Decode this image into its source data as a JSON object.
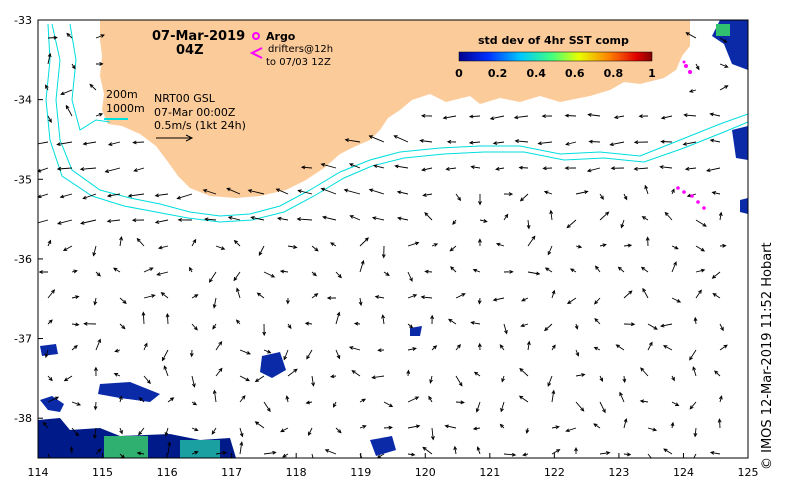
{
  "map": {
    "date": "07-Mar-2019",
    "hour": "04Z",
    "colorbar_title": "std dev of 4hr SST comp",
    "colorbar_ticks": [
      "0",
      "0.2",
      "0.4",
      "0.6",
      "0.8",
      "1"
    ],
    "legend": {
      "argo_label": "Argo",
      "drifters_line1": "drifters@12h",
      "drifters_line2": "to 07/03 12Z",
      "contour_200": "200m",
      "contour_1000": "1000m",
      "product": "NRT00 GSL",
      "product_time": "07-Mar 00:00Z",
      "vector_scale": "0.5m/s (1kt 24h)"
    },
    "lon_ticks": [
      "114",
      "115",
      "116",
      "117",
      "118",
      "119",
      "120",
      "121",
      "122",
      "123",
      "124",
      "125"
    ],
    "lat_ticks": [
      "-33",
      "-34",
      "-35",
      "-36",
      "-37",
      "-38"
    ],
    "lon_range": [
      114,
      125
    ],
    "lat_range": [
      -38.5,
      -33
    ],
    "credit": "© IMOS 12-Mar-2019 11:52 Hobart",
    "colors": {
      "land": "#fccb9a",
      "contour": "#00dede",
      "argo": "#ff00ff",
      "vectors": "#000000"
    }
  }
}
